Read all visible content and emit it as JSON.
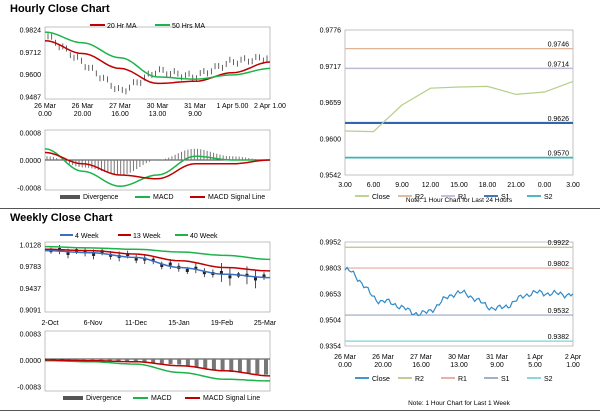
{
  "hourly": {
    "title": "Hourly Close Chart",
    "price": {
      "legend": [
        "20 Hr MA",
        "50 Hrs MA"
      ],
      "yticks": [
        "0.9824",
        "0.9712",
        "0.9600",
        "0.9487"
      ],
      "xticks": [
        [
          "26 Mar",
          "0.00"
        ],
        [
          "26 Mar",
          "20.00"
        ],
        [
          "27 Mar",
          "16.00"
        ],
        [
          "30 Mar",
          "13.00"
        ],
        [
          "31 Mar",
          "9.00"
        ],
        [
          "1 Apr 5.00",
          ""
        ],
        [
          "2 Apr 1.00",
          ""
        ]
      ]
    },
    "macd": {
      "yticks": [
        "0.0008",
        "0.0000",
        "-0.0008"
      ],
      "legend": [
        "Divergence",
        "MACD",
        "MACD Signal Line"
      ]
    },
    "sr": {
      "yticks": [
        "0.9776",
        "0.9717",
        "0.9659",
        "0.9600",
        "0.9542"
      ],
      "xticks": [
        "3.00",
        "6.00",
        "9.00",
        "12.00",
        "15.00",
        "18.00",
        "21.00",
        "0.00",
        "3.00"
      ],
      "level_labels": [
        "0.9746",
        "0.9714",
        "0.9626",
        "0.9570"
      ],
      "legend": [
        "Close",
        "R2",
        "R1",
        "S1",
        "S2"
      ],
      "note": "Note: 1 Hour Chart for Last 24 Hours"
    }
  },
  "weekly": {
    "title": "Weekly Close Chart",
    "price": {
      "legend": [
        "4 Week",
        "13 Week",
        "40 Week"
      ],
      "yticks": [
        "1.0128",
        "0.9783",
        "0.9437",
        "0.9091"
      ],
      "xticks": [
        "2-Oct",
        "6-Nov",
        "11-Dec",
        "15-Jan",
        "19-Feb",
        "25-Mar"
      ]
    },
    "macd": {
      "yticks": [
        "0.0083",
        "0.0000",
        "-0.0083"
      ],
      "legend": [
        "Divergence",
        "MACD",
        "MACD Signal Line"
      ]
    },
    "sr": {
      "yticks": [
        "0.9952",
        "0.9803",
        "0.9653",
        "0.9504",
        "0.9354"
      ],
      "xticks": [
        [
          "26 Mar",
          "0.00"
        ],
        [
          "26 Mar",
          "20.00"
        ],
        [
          "27 Mar",
          "16.00"
        ],
        [
          "30 Mar",
          "13.00"
        ],
        [
          "31 Mar",
          "9.00"
        ],
        [
          "1 Apr",
          "5.00"
        ],
        [
          "2 Apr",
          "1.00"
        ]
      ],
      "level_labels": [
        "0.9922",
        "0.9802",
        "0.9532",
        "0.9382"
      ],
      "legend": [
        "Close",
        "R2",
        "R1",
        "S1",
        "S2"
      ],
      "note": "Note: 1 Hour Chart for Last 1 Week"
    }
  },
  "colors": {
    "red": "#c00000",
    "green": "#1db34a",
    "blue": "#3a6fc4",
    "dark_blue": "#2a5ca8",
    "sr_close": "#b5cf8a",
    "sr_r2": "#e0b496",
    "sr_r1": "#bfb9d6",
    "sr_s1": "#2f66b0",
    "sr_s2": "#3bb3b7",
    "w_r2": "#bfc28a",
    "w_r1": "#e3aaa0",
    "w_s1": "#9aa7bd",
    "w_s2": "#7ed3d6",
    "w_close": "#2e8bc9",
    "divergence": "#777777"
  },
  "chart_data": [
    {
      "type": "line",
      "title": "Hourly Close Chart",
      "x": [
        "26 Mar 0.00",
        "26 Mar 20.00",
        "27 Mar 16.00",
        "30 Mar 13.00",
        "31 Mar 9.00",
        "1 Apr 5.00",
        "2 Apr 1.00"
      ],
      "ylim": [
        0.9487,
        0.9824
      ],
      "series": [
        {
          "name": "20 Hr MA",
          "values": [
            0.976,
            0.97,
            0.963,
            0.956,
            0.957,
            0.961,
            0.966
          ]
        },
        {
          "name": "50 Hrs MA",
          "values": [
            0.98,
            0.975,
            0.968,
            0.959,
            0.958,
            0.96,
            0.963
          ]
        },
        {
          "values": [
            0.978,
            0.965,
            0.952,
            0.962,
            0.959,
            0.966,
            0.968
          ]
        }
      ]
    },
    {
      "type": "bar",
      "ylim": [
        -0.0008,
        0.0008
      ],
      "series": [
        {
          "name": "Divergence",
          "values": [
            0.0001,
            -0.0002,
            -0.0004,
            0.0,
            0.0003,
            0.0001,
            0.0
          ]
        },
        {
          "name": "MACD",
          "values": [
            0.0003,
            -0.0003,
            -0.0007,
            -0.0004,
            0.0001,
            0.0,
            0.0
          ]
        },
        {
          "name": "MACD Signal Line",
          "values": [
            0.0002,
            -0.0001,
            -0.0004,
            -0.0005,
            -0.0001,
            -0.0001,
            0.0
          ]
        }
      ]
    },
    {
      "type": "line",
      "x": [
        "3.00",
        "6.00",
        "9.00",
        "12.00",
        "15.00",
        "18.00",
        "21.00",
        "0.00",
        "3.00"
      ],
      "ylim": [
        0.9542,
        0.9776
      ],
      "series": [
        {
          "name": "Close",
          "values": [
            0.9613,
            0.9612,
            0.9655,
            0.9682,
            0.9684,
            0.9685,
            0.9672,
            0.9676,
            0.9693
          ]
        },
        {
          "name": "R2",
          "values": [
            0.9746,
            0.9746,
            0.9746,
            0.9746,
            0.9746,
            0.9746,
            0.9746,
            0.9746,
            0.9746
          ]
        },
        {
          "name": "R1",
          "values": [
            0.9714,
            0.9714,
            0.9714,
            0.9714,
            0.9714,
            0.9714,
            0.9714,
            0.9714,
            0.9714
          ]
        },
        {
          "name": "S1",
          "values": [
            0.9626,
            0.9626,
            0.9626,
            0.9626,
            0.9626,
            0.9626,
            0.9626,
            0.9626,
            0.9626
          ]
        },
        {
          "name": "S2",
          "values": [
            0.957,
            0.957,
            0.957,
            0.957,
            0.957,
            0.957,
            0.957,
            0.957,
            0.957
          ]
        }
      ]
    },
    {
      "type": "line",
      "title": "Weekly Close Chart",
      "x": [
        "2-Oct",
        "6-Nov",
        "11-Dec",
        "15-Jan",
        "19-Feb",
        "25-Mar"
      ],
      "ylim": [
        0.9091,
        1.0128
      ],
      "series": [
        {
          "name": "4 Week",
          "values": [
            1.0,
            0.997,
            0.99,
            0.975,
            0.965,
            0.96
          ]
        },
        {
          "name": "13 Week",
          "values": [
            1.002,
            1.0,
            0.995,
            0.985,
            0.975,
            0.97
          ]
        },
        {
          "name": "40 Week",
          "values": [
            1.006,
            1.004,
            1.002,
            0.998,
            0.993,
            0.987
          ]
        }
      ]
    },
    {
      "type": "bar",
      "ylim": [
        -0.0083,
        0.0083
      ],
      "series": [
        {
          "name": "Divergence",
          "values": [
            -0.0004,
            -0.0002,
            -0.0008,
            -0.0015,
            -0.0035,
            -0.0045
          ]
        },
        {
          "name": "MACD",
          "values": [
            -0.0005,
            -0.0008,
            -0.0015,
            -0.004,
            -0.006,
            -0.0065
          ]
        },
        {
          "name": "MACD Signal Line",
          "values": [
            -0.0003,
            -0.0005,
            -0.0008,
            -0.002,
            -0.0035,
            -0.005
          ]
        }
      ]
    },
    {
      "type": "line",
      "x": [
        "26 Mar 0.00",
        "26 Mar 20.00",
        "27 Mar 16.00",
        "30 Mar 13.00",
        "31 Mar 9.00",
        "1 Apr 5.00",
        "2 Apr 1.00"
      ],
      "ylim": [
        0.9354,
        0.9952
      ],
      "series": [
        {
          "name": "Close",
          "values": [
            0.979,
            0.961,
            0.954,
            0.966,
            0.957,
            0.966,
            0.965
          ]
        },
        {
          "name": "R2",
          "values": [
            0.9922,
            0.9922,
            0.9922,
            0.9922,
            0.9922,
            0.9922,
            0.9922
          ]
        },
        {
          "name": "R1",
          "values": [
            0.9802,
            0.9802,
            0.9802,
            0.9802,
            0.9802,
            0.9802,
            0.9802
          ]
        },
        {
          "name": "S1",
          "values": [
            0.9532,
            0.9532,
            0.9532,
            0.9532,
            0.9532,
            0.9532,
            0.9532
          ]
        },
        {
          "name": "S2",
          "values": [
            0.9382,
            0.9382,
            0.9382,
            0.9382,
            0.9382,
            0.9382,
            0.9382
          ]
        }
      ]
    }
  ]
}
